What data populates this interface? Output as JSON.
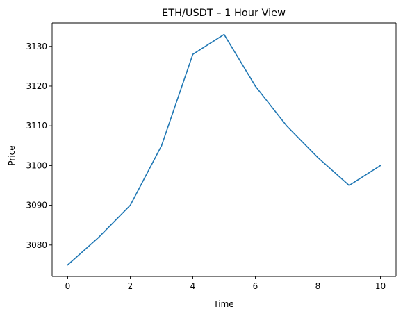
{
  "chart_data": {
    "type": "line",
    "title": "ETH/USDT – 1 Hour View",
    "xlabel": "Time",
    "ylabel": "Price",
    "x": [
      0,
      1,
      2,
      3,
      4,
      5,
      6,
      7,
      8,
      9,
      10
    ],
    "series": [
      {
        "values": [
          3075,
          3082,
          3090,
          3105,
          3128,
          3133,
          3120,
          3110,
          3102,
          3095,
          3100
        ],
        "color": "#1f77b4"
      }
    ],
    "xlim": [
      -0.5,
      10.5
    ],
    "ylim": [
      3072.1,
      3135.9
    ],
    "xticks": [
      0,
      2,
      4,
      6,
      8,
      10
    ],
    "yticks": [
      3080,
      3090,
      3100,
      3110,
      3120,
      3130
    ],
    "grid": false,
    "legend": "none"
  }
}
